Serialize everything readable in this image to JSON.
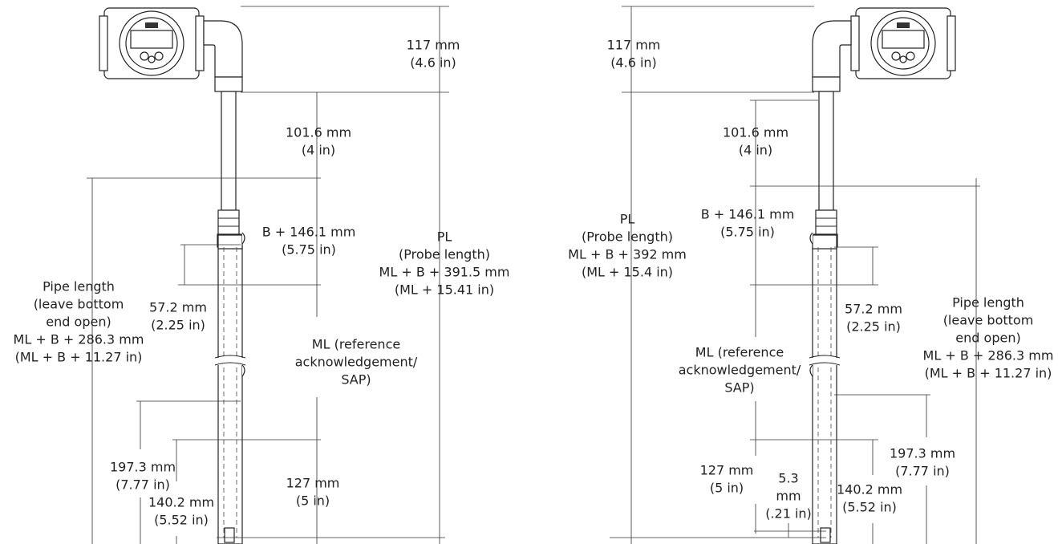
{
  "views": [
    {
      "labels": [
        {
          "lines": [
            "117 mm",
            "(4.6 in)"
          ]
        },
        {
          "lines": [
            "101.6 mm",
            "(4 in)"
          ]
        },
        {
          "lines": [
            "B + 146.1 mm",
            "(5.75 in)"
          ]
        },
        {
          "lines": [
            "PL",
            "(Probe length)",
            "ML + B + 391.5 mm",
            "(ML + 15.41 in)"
          ]
        },
        {
          "lines": [
            "Pipe length",
            "(leave bottom",
            "end open)",
            "ML + B + 286.3 mm",
            "(ML + B + 11.27 in)"
          ]
        },
        {
          "lines": [
            "57.2 mm",
            "(2.25 in)"
          ]
        },
        {
          "lines": [
            "ML (reference",
            "acknowledgement/",
            "SAP)"
          ]
        },
        {
          "lines": [
            "197.3 mm",
            "(7.77 in)"
          ]
        },
        {
          "lines": [
            "140.2 mm",
            "(5.52 in)"
          ]
        },
        {
          "lines": [
            "127 mm",
            "(5 in)"
          ]
        }
      ]
    },
    {
      "labels": [
        {
          "lines": [
            "117 mm",
            "(4.6 in)"
          ]
        },
        {
          "lines": [
            "101.6 mm",
            "(4 in)"
          ]
        },
        {
          "lines": [
            "B + 146.1 mm",
            "(5.75 in)"
          ]
        },
        {
          "lines": [
            "PL",
            "(Probe length)",
            "ML + B + 392 mm",
            "(ML + 15.4 in)"
          ]
        },
        {
          "lines": [
            "57.2 mm",
            "(2.25 in)"
          ]
        },
        {
          "lines": [
            "Pipe length",
            "(leave bottom",
            "end open)",
            "ML + B + 286.3 mm",
            "(ML + B + 11.27 in)"
          ]
        },
        {
          "lines": [
            "ML (reference",
            "acknowledgement/",
            "SAP)"
          ]
        },
        {
          "lines": [
            "197.3 mm",
            "(7.77 in)"
          ]
        },
        {
          "lines": [
            "127 mm",
            "(5 in)"
          ]
        },
        {
          "lines": [
            "5.3",
            "mm",
            "(.21 in)"
          ]
        },
        {
          "lines": [
            "140.2 mm",
            "(5.52 in)"
          ]
        }
      ]
    }
  ]
}
